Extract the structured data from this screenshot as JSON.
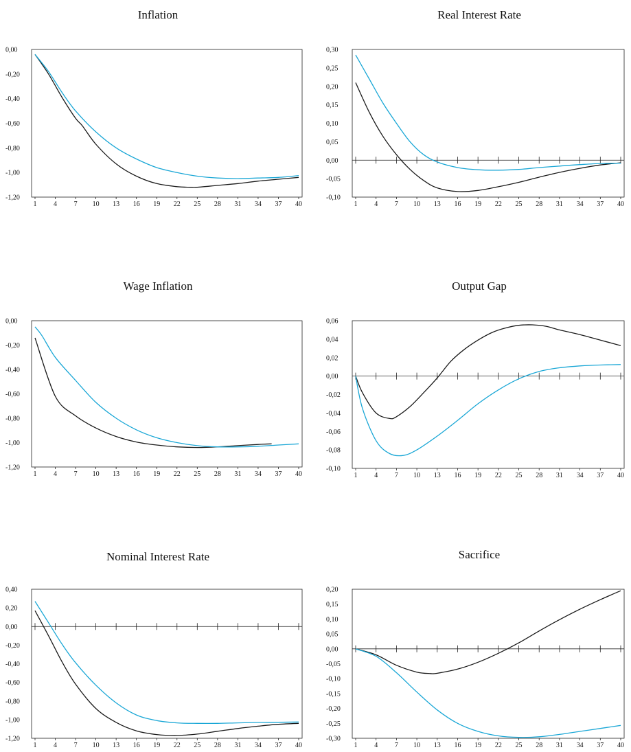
{
  "colors": {
    "series_black": "#1a1a1a",
    "series_blue": "#1aa7d6"
  },
  "chart_data": [
    {
      "type": "line",
      "title": "Inflation",
      "ylim": [
        -1.2,
        0.0
      ],
      "yticks": [
        "0,00",
        "-0,20",
        "-0,40",
        "-0,60",
        "-0,80",
        "-1,00",
        "-1,20"
      ],
      "xticks": [
        "1",
        "4",
        "7",
        "10",
        "13",
        "16",
        "19",
        "22",
        "25",
        "28",
        "31",
        "34",
        "37",
        "40"
      ],
      "zero_line": false,
      "series": [
        {
          "color": "#1a1a1a",
          "x": [
            1,
            3,
            5,
            7,
            8,
            10,
            13,
            16,
            19,
            22,
            24,
            25,
            28,
            31,
            34,
            37,
            40
          ],
          "y": [
            -0.04,
            -0.2,
            -0.39,
            -0.56,
            -0.62,
            -0.77,
            -0.93,
            -1.03,
            -1.09,
            -1.115,
            -1.12,
            -1.12,
            -1.105,
            -1.09,
            -1.07,
            -1.055,
            -1.04
          ]
        },
        {
          "color": "#1aa7d6",
          "x": [
            1,
            3,
            5,
            7,
            10,
            13,
            16,
            19,
            22,
            25,
            28,
            31,
            34,
            37,
            40
          ],
          "y": [
            -0.04,
            -0.18,
            -0.35,
            -0.5,
            -0.67,
            -0.8,
            -0.89,
            -0.96,
            -1.0,
            -1.03,
            -1.045,
            -1.05,
            -1.045,
            -1.04,
            -1.025
          ]
        }
      ]
    },
    {
      "type": "line",
      "title": "Real Interest Rate",
      "ylim": [
        -0.1,
        0.3
      ],
      "yticks": [
        "0,30",
        "0,25",
        "0,20",
        "0,15",
        "0,10",
        "0,05",
        "0,00",
        "-0,05",
        "-0,10"
      ],
      "xticks": [
        "1",
        "4",
        "7",
        "10",
        "13",
        "16",
        "19",
        "22",
        "25",
        "28",
        "31",
        "34",
        "37",
        "40"
      ],
      "zero_line": true,
      "series": [
        {
          "color": "#1a1a1a",
          "x": [
            1,
            3,
            5,
            7,
            9,
            11,
            13,
            16,
            19,
            22,
            25,
            28,
            31,
            34,
            37,
            40
          ],
          "y": [
            0.21,
            0.13,
            0.065,
            0.015,
            -0.025,
            -0.055,
            -0.075,
            -0.085,
            -0.082,
            -0.072,
            -0.06,
            -0.046,
            -0.033,
            -0.022,
            -0.013,
            -0.007
          ]
        },
        {
          "color": "#1aa7d6",
          "x": [
            1,
            3,
            5,
            7,
            9,
            11,
            13,
            16,
            19,
            22,
            25,
            28,
            31,
            34,
            37,
            40
          ],
          "y": [
            0.285,
            0.22,
            0.155,
            0.1,
            0.05,
            0.015,
            -0.005,
            -0.02,
            -0.026,
            -0.027,
            -0.025,
            -0.02,
            -0.016,
            -0.012,
            -0.009,
            -0.008
          ]
        }
      ]
    },
    {
      "type": "line",
      "title": "Wage Inflation",
      "ylim": [
        -1.2,
        0.0
      ],
      "yticks": [
        "0,00",
        "-0,20",
        "-0,40",
        "-0,60",
        "-0,80",
        "-1,00",
        "-1,20"
      ],
      "xticks": [
        "1",
        "4",
        "7",
        "10",
        "13",
        "16",
        "19",
        "22",
        "25",
        "28",
        "31",
        "34",
        "37",
        "40"
      ],
      "zero_line": false,
      "series": [
        {
          "color": "#1a1a1a",
          "x": [
            1,
            4,
            7,
            10,
            13,
            16,
            19,
            22,
            25,
            28,
            31,
            34,
            36
          ],
          "y": [
            -0.14,
            -0.62,
            -0.78,
            -0.88,
            -0.95,
            -0.995,
            -1.02,
            -1.035,
            -1.04,
            -1.035,
            -1.025,
            -1.015,
            -1.01
          ]
        },
        {
          "color": "#1aa7d6",
          "x": [
            1,
            2,
            4,
            7,
            10,
            13,
            16,
            19,
            22,
            25,
            28,
            31,
            34,
            37,
            40
          ],
          "y": [
            -0.05,
            -0.12,
            -0.3,
            -0.49,
            -0.67,
            -0.8,
            -0.895,
            -0.96,
            -1.0,
            -1.025,
            -1.035,
            -1.035,
            -1.03,
            -1.02,
            -1.01
          ]
        }
      ]
    },
    {
      "type": "line",
      "title": "Output Gap",
      "ylim": [
        -0.1,
        0.06
      ],
      "yticks": [
        "0,06",
        "0,04",
        "0,02",
        "0,00",
        "-0,02",
        "-0,04",
        "-0,06",
        "-0,08",
        "-0,10"
      ],
      "xticks": [
        "1",
        "4",
        "7",
        "10",
        "13",
        "16",
        "19",
        "22",
        "25",
        "28",
        "31",
        "34",
        "37",
        "40"
      ],
      "zero_line": true,
      "series": [
        {
          "color": "#1a1a1a",
          "x": [
            1,
            2,
            4,
            6,
            7,
            9,
            11,
            13,
            15,
            17,
            19,
            21,
            23,
            25,
            27,
            29,
            31,
            34,
            37,
            40
          ],
          "y": [
            0.0,
            -0.018,
            -0.04,
            -0.046,
            -0.044,
            -0.033,
            -0.018,
            -0.002,
            0.016,
            0.029,
            0.039,
            0.047,
            0.052,
            0.055,
            0.0555,
            0.054,
            0.05,
            0.045,
            0.039,
            0.033
          ]
        },
        {
          "color": "#1aa7d6",
          "x": [
            1,
            2,
            4,
            6,
            8,
            10,
            13,
            16,
            19,
            22,
            25,
            28,
            31,
            34,
            37,
            40
          ],
          "y": [
            0.0,
            -0.035,
            -0.07,
            -0.084,
            -0.086,
            -0.08,
            -0.065,
            -0.048,
            -0.03,
            -0.015,
            -0.003,
            0.005,
            0.009,
            0.011,
            0.012,
            0.0125
          ]
        }
      ]
    },
    {
      "type": "line",
      "title": "Nominal Interest Rate",
      "ylim": [
        -1.2,
        0.4
      ],
      "yticks": [
        "0,40",
        "0,20",
        "0,00",
        "-0,20",
        "-0,40",
        "-0,60",
        "-0,80",
        "-1,00",
        "-1,20"
      ],
      "xticks": [
        "1",
        "4",
        "7",
        "10",
        "13",
        "16",
        "19",
        "22",
        "25",
        "28",
        "31",
        "34",
        "37",
        "40"
      ],
      "zero_line": true,
      "series": [
        {
          "color": "#1a1a1a",
          "x": [
            1,
            3,
            5,
            7,
            10,
            13,
            16,
            19,
            22,
            25,
            28,
            31,
            34,
            37,
            40
          ],
          "y": [
            0.17,
            -0.1,
            -0.38,
            -0.62,
            -0.88,
            -1.03,
            -1.12,
            -1.16,
            -1.17,
            -1.155,
            -1.125,
            -1.095,
            -1.07,
            -1.05,
            -1.04
          ]
        },
        {
          "color": "#1aa7d6",
          "x": [
            1,
            3,
            5,
            7,
            10,
            13,
            16,
            19,
            22,
            25,
            28,
            31,
            34,
            37,
            40
          ],
          "y": [
            0.27,
            0.04,
            -0.19,
            -0.39,
            -0.63,
            -0.82,
            -0.95,
            -1.01,
            -1.035,
            -1.04,
            -1.04,
            -1.035,
            -1.03,
            -1.028,
            -1.025
          ]
        }
      ]
    },
    {
      "type": "line",
      "title": "Sacrifice",
      "ylim": [
        -0.3,
        0.2
      ],
      "yticks": [
        "0,20",
        "0,15",
        "0,10",
        "0,05",
        "0,00",
        "-0,05",
        "-0,10",
        "-0,15",
        "-0,20",
        "-0,25",
        "-0,30"
      ],
      "xticks": [
        "1",
        "4",
        "7",
        "10",
        "13",
        "16",
        "19",
        "22",
        "25",
        "28",
        "31",
        "34",
        "37",
        "40"
      ],
      "zero_line": true,
      "series": [
        {
          "color": "#1a1a1a",
          "x": [
            1,
            4,
            7,
            10,
            12,
            13,
            16,
            19,
            22,
            25,
            28,
            31,
            34,
            37,
            40
          ],
          "y": [
            0.0,
            -0.02,
            -0.055,
            -0.078,
            -0.083,
            -0.082,
            -0.068,
            -0.045,
            -0.015,
            0.02,
            0.06,
            0.098,
            0.133,
            0.165,
            0.195
          ]
        },
        {
          "color": "#1aa7d6",
          "x": [
            1,
            4,
            7,
            10,
            13,
            16,
            19,
            22,
            25,
            28,
            31,
            34,
            37,
            40
          ],
          "y": [
            0.0,
            -0.025,
            -0.08,
            -0.145,
            -0.205,
            -0.25,
            -0.277,
            -0.292,
            -0.297,
            -0.295,
            -0.287,
            -0.277,
            -0.267,
            -0.257
          ]
        }
      ]
    }
  ]
}
